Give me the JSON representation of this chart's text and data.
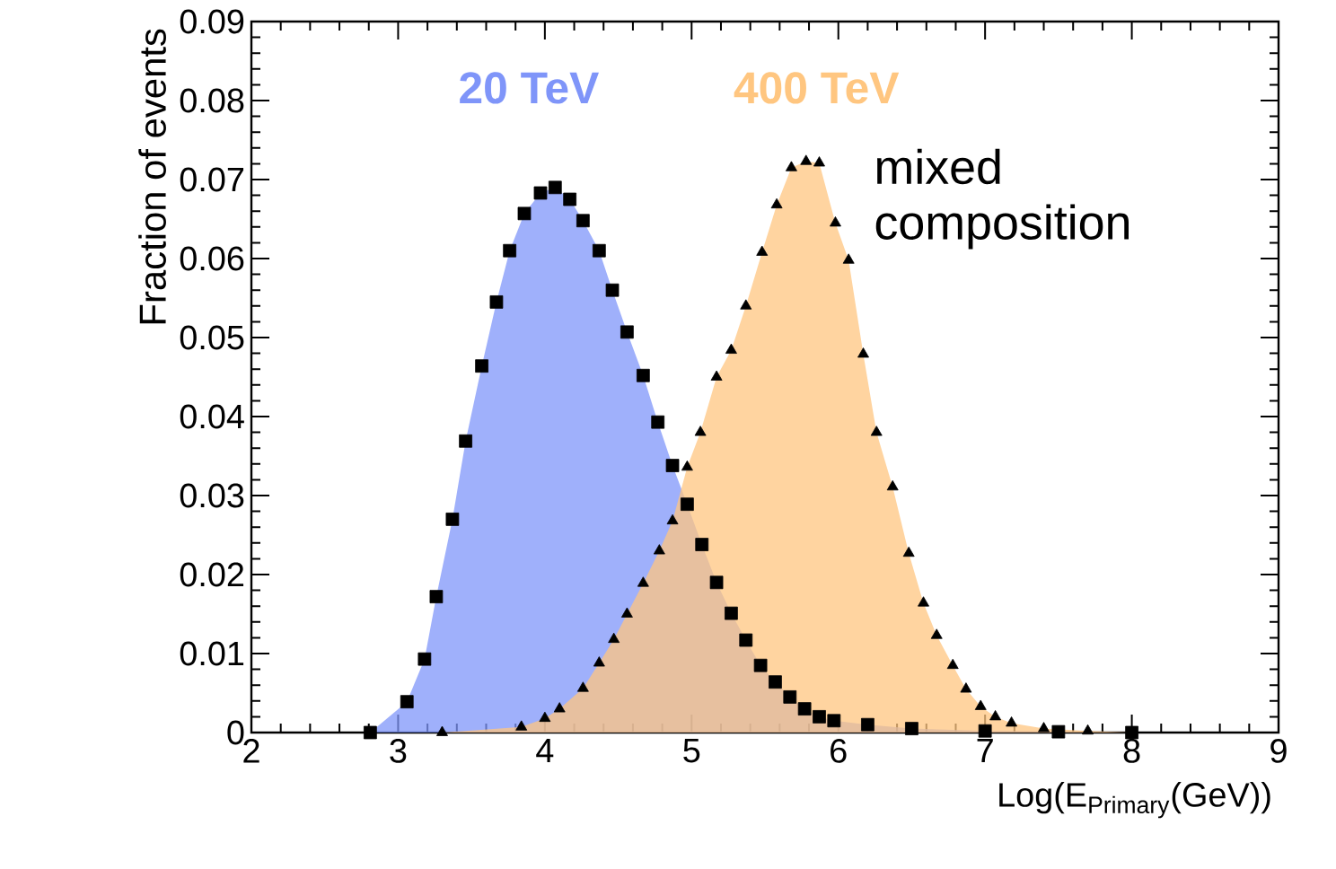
{
  "chart_data": {
    "type": "area",
    "xlabel": "Log(E$_{Primary}$(GeV))",
    "ylabel": "Fraction of events",
    "annotations": [
      "mixed composition"
    ],
    "legend": "top",
    "xlim": [
      2,
      9
    ],
    "xticks": [
      2,
      3,
      4,
      5,
      6,
      7,
      8,
      9
    ],
    "ylim": [
      0,
      0.09
    ],
    "yticks": [
      0,
      0.01,
      0.02,
      0.03,
      0.04,
      0.05,
      0.06,
      0.07,
      0.08,
      0.09
    ],
    "series": [
      {
        "name": "20 TeV",
        "color": "#7f95f9",
        "marker": "square",
        "x": [
          2.81,
          3.06,
          3.18,
          3.26,
          3.37,
          3.46,
          3.57,
          3.67,
          3.76,
          3.86,
          3.97,
          4.07,
          4.17,
          4.26,
          4.37,
          4.46,
          4.56,
          4.67,
          4.77,
          4.87,
          4.97,
          5.07,
          5.17,
          5.27,
          5.37,
          5.47,
          5.57,
          5.67,
          5.77,
          5.87,
          5.97,
          6.2,
          6.5,
          7.0,
          7.5,
          8.0
        ],
        "values": [
          0.0,
          0.0039,
          0.0093,
          0.0172,
          0.027,
          0.0369,
          0.0464,
          0.0545,
          0.061,
          0.0657,
          0.0683,
          0.069,
          0.0675,
          0.0648,
          0.061,
          0.056,
          0.0507,
          0.0452,
          0.0393,
          0.0338,
          0.0289,
          0.0238,
          0.019,
          0.0151,
          0.0117,
          0.0085,
          0.0064,
          0.0045,
          0.003,
          0.002,
          0.0015,
          0.001,
          0.0005,
          0.0002,
          0.0001,
          0.0
        ]
      },
      {
        "name": "400 TeV",
        "color": "#ffc680",
        "marker": "triangle",
        "x": [
          3.3,
          3.84,
          4.0,
          4.1,
          4.26,
          4.37,
          4.47,
          4.56,
          4.67,
          4.78,
          4.87,
          4.97,
          5.06,
          5.17,
          5.27,
          5.37,
          5.48,
          5.58,
          5.68,
          5.78,
          5.87,
          5.98,
          6.07,
          6.17,
          6.26,
          6.37,
          6.48,
          6.58,
          6.67,
          6.78,
          6.87,
          6.97,
          7.07,
          7.18,
          7.4,
          7.7,
          8.0
        ],
        "values": [
          0.0,
          0.0007,
          0.0018,
          0.003,
          0.0056,
          0.0088,
          0.0118,
          0.015,
          0.0189,
          0.023,
          0.0268,
          0.0336,
          0.038,
          0.045,
          0.0484,
          0.054,
          0.0608,
          0.0668,
          0.0715,
          0.0723,
          0.0721,
          0.0645,
          0.0598,
          0.0479,
          0.038,
          0.0311,
          0.0227,
          0.0164,
          0.0123,
          0.0085,
          0.0055,
          0.0033,
          0.002,
          0.0012,
          0.0005,
          0.0002,
          0.0
        ]
      }
    ]
  }
}
